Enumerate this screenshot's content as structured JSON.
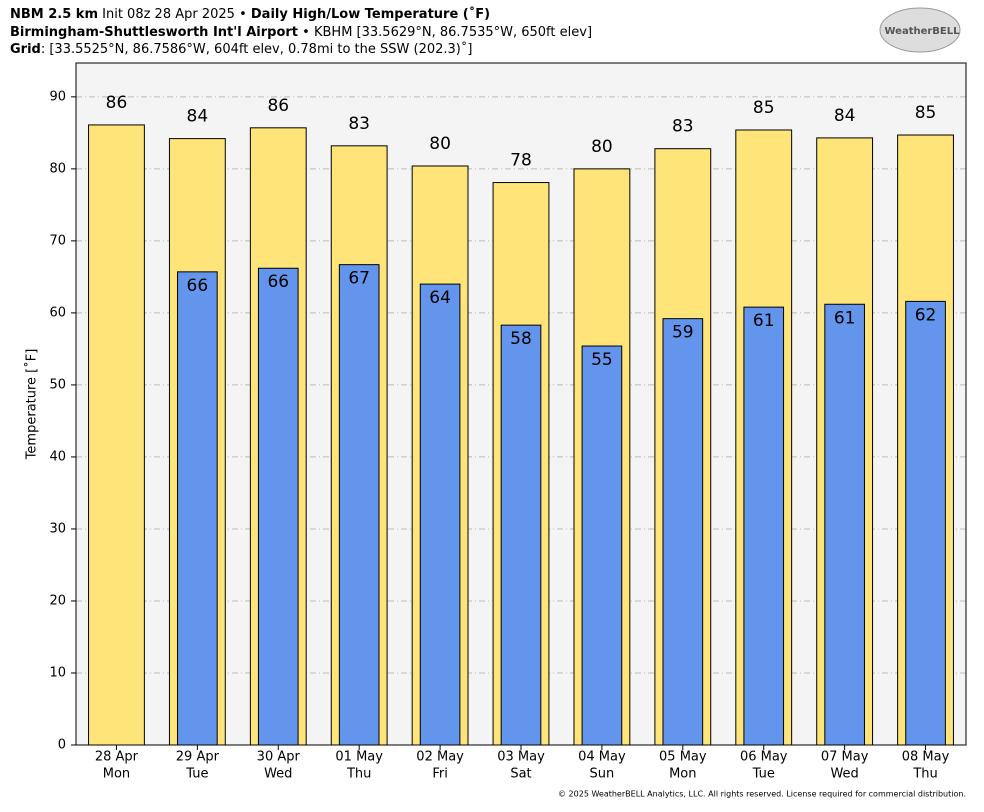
{
  "chart_data": {
    "type": "bar",
    "title_parts": [
      "NBM 2.5 km",
      "Init 08z 28 Apr 2025",
      "•",
      "Daily High/Low Temperature (˚F)"
    ],
    "subtitle_parts": [
      "Birmingham-Shuttlesworth Int'l Airport",
      "•",
      "KBHM [33.5629°N, 86.7535°W, 650ft elev]"
    ],
    "grid_parts": [
      "Grid",
      ": [33.5525°N, 86.7586°W, 604ft elev, 0.78mi to the SSW (202.3)˚]"
    ],
    "logo": "WeatherBELL",
    "ylabel": "Temperature [˚F]",
    "footer": "© 2025 WeatherBELL Analytics, LLC. All rights reserved. License required for commercial distribution.",
    "categories": [
      "28 Apr",
      "29 Apr",
      "30 Apr",
      "01 May",
      "02 May",
      "03 May",
      "04 May",
      "05 May",
      "06 May",
      "07 May",
      "08 May"
    ],
    "category_days": [
      "Mon",
      "Tue",
      "Wed",
      "Thu",
      "Fri",
      "Sat",
      "Sun",
      "Mon",
      "Tue",
      "Wed",
      "Thu"
    ],
    "series": [
      {
        "name": "High",
        "color": "#ffe47a",
        "values": [
          86.1,
          84.2,
          85.7,
          83.2,
          80.4,
          78.1,
          80.0,
          82.8,
          85.4,
          84.3,
          84.7
        ],
        "value_labels": [
          "86",
          "84",
          "86",
          "83",
          "80",
          "78",
          "80",
          "83",
          "85",
          "84",
          "85"
        ]
      },
      {
        "name": "Low",
        "color": "#6495ed",
        "values": [
          null,
          65.7,
          66.2,
          66.7,
          64.0,
          58.3,
          55.4,
          59.2,
          60.8,
          61.2,
          61.6
        ],
        "value_labels": [
          null,
          "66",
          "66",
          "67",
          "64",
          "58",
          "55",
          "59",
          "61",
          "61",
          "62"
        ]
      }
    ],
    "ylim": [
      0,
      94.7
    ],
    "yticks": [
      0,
      10,
      20,
      30,
      40,
      50,
      60,
      70,
      80,
      90
    ],
    "grid": true
  }
}
